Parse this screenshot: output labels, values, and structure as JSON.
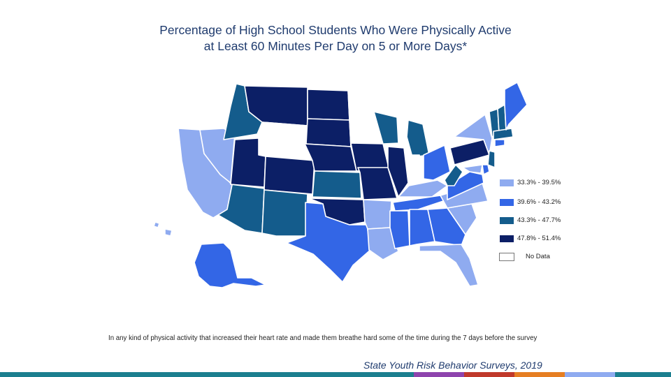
{
  "title_line1": "Percentage of High School Students Who Were Physically Active",
  "title_line2": "at Least 60 Minutes Per Day on 5 or More Days*",
  "legend": [
    {
      "label": "33.3% - 39.5%",
      "color": "#8fabf0"
    },
    {
      "label": "39.6% - 43.2%",
      "color": "#3366e6"
    },
    {
      "label": "43.3% - 47.7%",
      "color": "#145c8c"
    },
    {
      "label": "47.8% - 51.4%",
      "color": "#0c1f66"
    },
    {
      "label": "No Data",
      "color": "#ffffff"
    }
  ],
  "footnote": "In any kind of physical activity that increased their heart rate and made them breathe hard some of the time during the 7 days before the survey",
  "source": "State Youth Risk Behavior Surveys, 2019",
  "bottom_bar_colors": [
    "#1b7f8f",
    "#1b7f8f",
    "#8e44ad",
    "#c0392b",
    "#e67e22",
    "#8fabf0",
    "#1b7f8f"
  ]
}
